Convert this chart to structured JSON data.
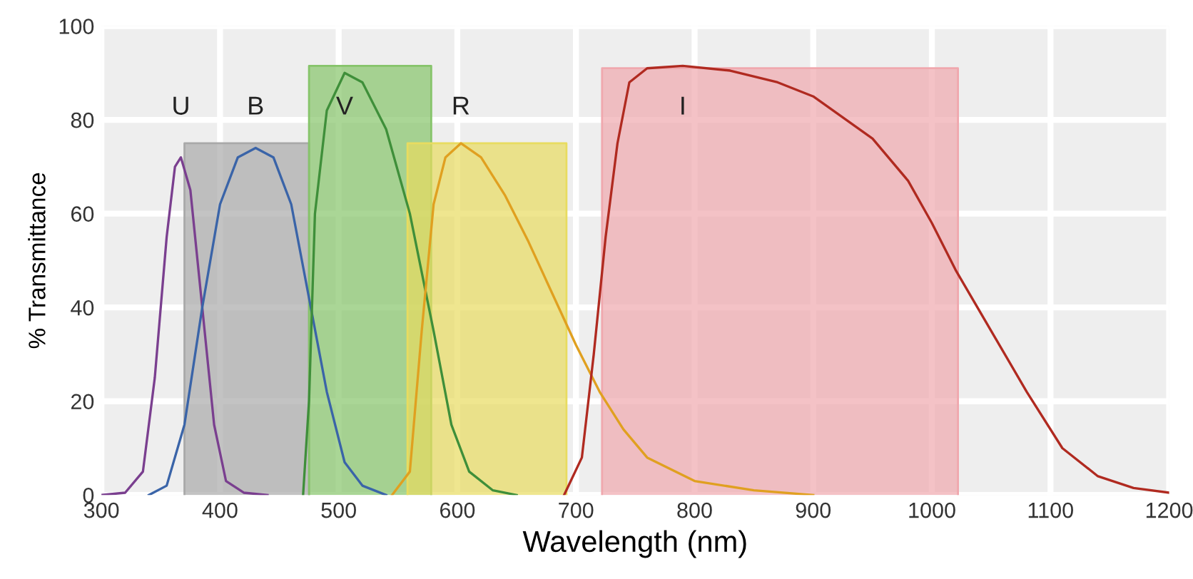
{
  "chart_data": {
    "type": "line",
    "xlabel": "Wavelength (nm)",
    "ylabel": "% Transmittance",
    "xlim": [
      300,
      1200
    ],
    "xticks": [
      300,
      400,
      500,
      600,
      700,
      800,
      900,
      1000,
      1100,
      1200
    ],
    "ylim": [
      0,
      100
    ],
    "yticks": [
      0,
      20,
      40,
      60,
      80,
      100
    ],
    "grid": true,
    "legend": false,
    "series": [
      {
        "type": "area",
        "color": "#a9a9a9",
        "x": [
          370,
          370,
          475,
          475
        ],
        "values": [
          0,
          75,
          75,
          0
        ]
      },
      {
        "type": "area",
        "color": "#86c46a",
        "x": [
          475,
          475,
          578,
          578
        ],
        "values": [
          0,
          91.5,
          91.5,
          0
        ]
      },
      {
        "type": "area",
        "color": "#e8dc60",
        "x": [
          558,
          558,
          692,
          692
        ],
        "values": [
          0,
          75,
          75,
          0
        ]
      },
      {
        "type": "area",
        "color": "#f0a8ae",
        "x": [
          722,
          722,
          1022,
          1022
        ],
        "values": [
          0,
          91,
          91,
          0
        ]
      },
      {
        "name": "U",
        "color": "#7a3f8f",
        "x": [
          300,
          320,
          335,
          345,
          355,
          362,
          367,
          375,
          385,
          395,
          405,
          420,
          440
        ],
        "values": [
          0,
          0.5,
          5,
          25,
          55,
          70,
          72,
          65,
          40,
          15,
          3,
          0.5,
          0
        ]
      },
      {
        "name": "B",
        "color": "#3a64a8",
        "x": [
          340,
          355,
          370,
          385,
          400,
          415,
          430,
          445,
          460,
          475,
          490,
          505,
          520,
          540
        ],
        "values": [
          0,
          2,
          15,
          40,
          62,
          72,
          74,
          72,
          62,
          42,
          22,
          7,
          2,
          0
        ]
      },
      {
        "name": "V",
        "color": "#3f8f3a",
        "x": [
          470,
          475,
          480,
          490,
          505,
          520,
          540,
          560,
          580,
          595,
          610,
          630,
          650
        ],
        "values": [
          0,
          20,
          60,
          82,
          90,
          88,
          78,
          60,
          35,
          15,
          5,
          1,
          0
        ]
      },
      {
        "name": "R",
        "color": "#e0a020",
        "x": [
          545,
          560,
          570,
          580,
          590,
          603,
          620,
          640,
          660,
          680,
          700,
          720,
          740,
          760,
          800,
          850,
          900
        ],
        "values": [
          0,
          5,
          35,
          62,
          72,
          75,
          72,
          64,
          54,
          43,
          32,
          22,
          14,
          8,
          3,
          1,
          0
        ]
      },
      {
        "name": "I",
        "color": "#b02a20",
        "x": [
          690,
          705,
          715,
          725,
          735,
          745,
          760,
          790,
          830,
          870,
          900,
          950,
          980,
          1000,
          1020,
          1050,
          1080,
          1110,
          1140,
          1170,
          1200
        ],
        "values": [
          0,
          8,
          30,
          55,
          75,
          88,
          91,
          91.5,
          90.5,
          88,
          85,
          76,
          67,
          58,
          48,
          35,
          22,
          10,
          4,
          1.5,
          0.5
        ]
      }
    ]
  }
}
